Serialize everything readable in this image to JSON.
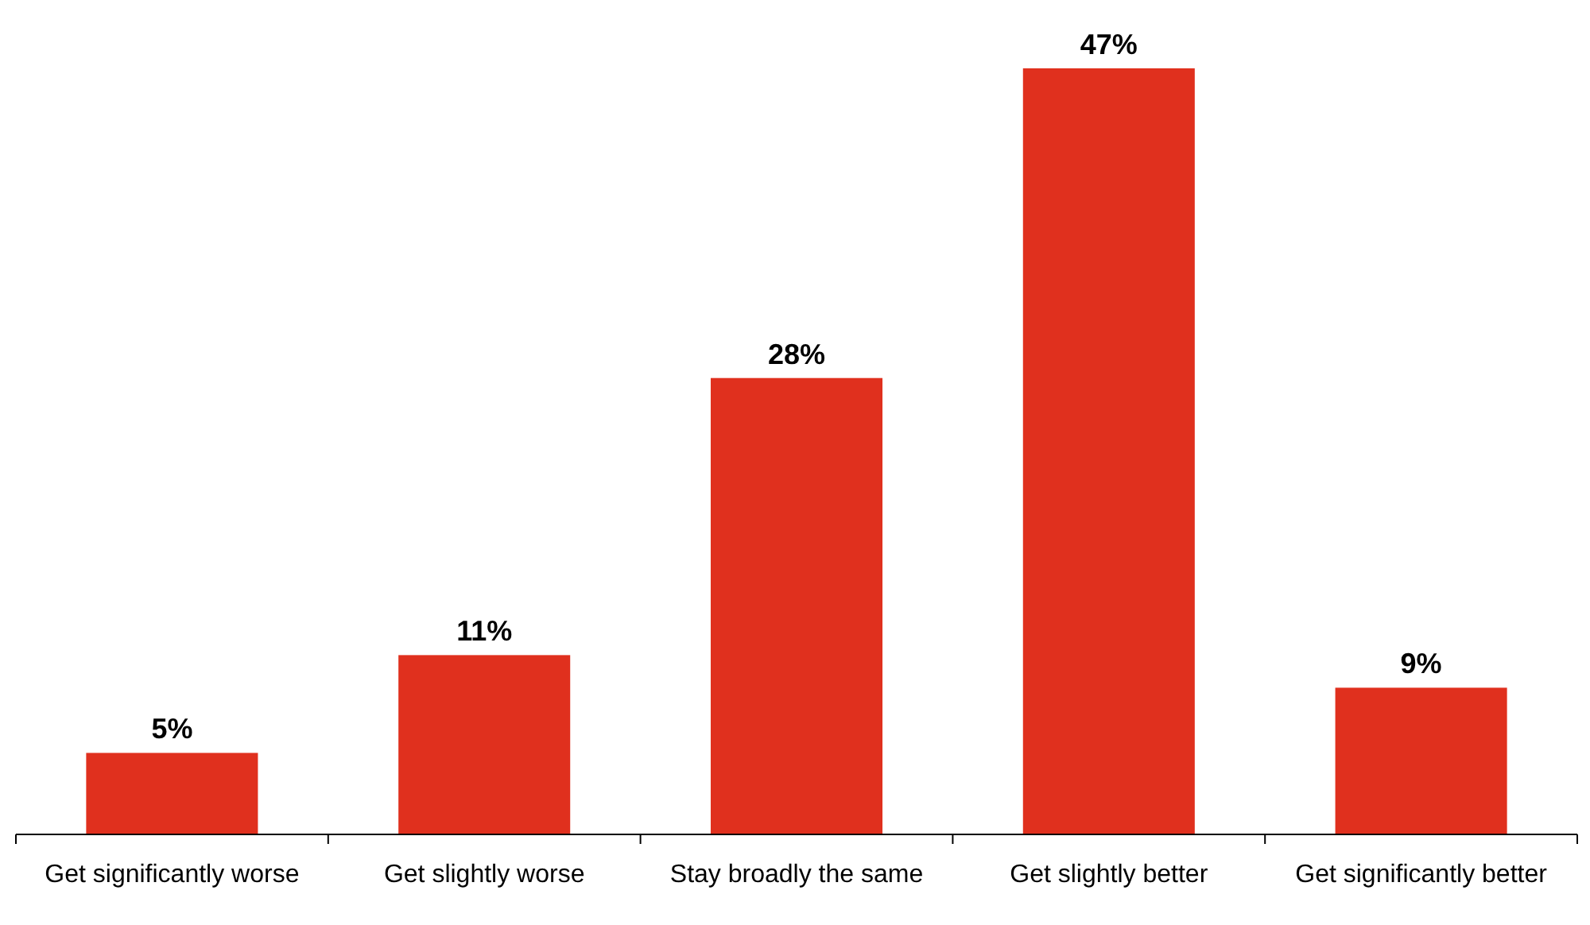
{
  "chart_data": {
    "type": "bar",
    "categories": [
      "Get significantly worse",
      "Get slightly worse",
      "Stay broadly the same",
      "Get slightly better",
      "Get significantly better"
    ],
    "values": [
      5,
      11,
      28,
      47,
      9
    ],
    "value_labels": [
      "5%",
      "11%",
      "28%",
      "47%",
      "9%"
    ],
    "color": "#e0301e"
  }
}
